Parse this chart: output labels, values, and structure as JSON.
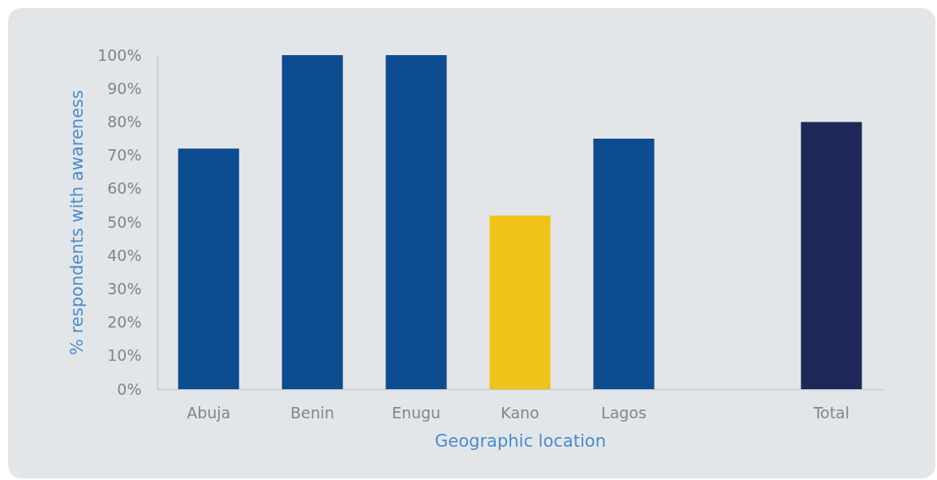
{
  "chart_data": {
    "type": "bar",
    "xlabel": "Geographic location",
    "ylabel": "% respondents with awareness",
    "categories": [
      "Abuja",
      "Benin",
      "Enugu",
      "Kano",
      "Lagos",
      null,
      "Total"
    ],
    "values": [
      72,
      100,
      100,
      52,
      75,
      null,
      80
    ],
    "colors": [
      "#0d4c8e",
      "#0d4c8e",
      "#0d4c8e",
      "#efc319",
      "#0d4c8e",
      null,
      "#1d2859"
    ],
    "ylim": [
      0,
      100
    ],
    "yticks": [
      {
        "value": 0,
        "label": "0%"
      },
      {
        "value": 10,
        "label": "10%"
      },
      {
        "value": 20,
        "label": "20%"
      },
      {
        "value": 30,
        "label": "30%"
      },
      {
        "value": 40,
        "label": "40%"
      },
      {
        "value": 50,
        "label": "50%"
      },
      {
        "value": 60,
        "label": "60%"
      },
      {
        "value": 70,
        "label": "70%"
      },
      {
        "value": 80,
        "label": "80%"
      },
      {
        "value": 90,
        "label": "90%"
      },
      {
        "value": 100,
        "label": "100%"
      }
    ]
  }
}
